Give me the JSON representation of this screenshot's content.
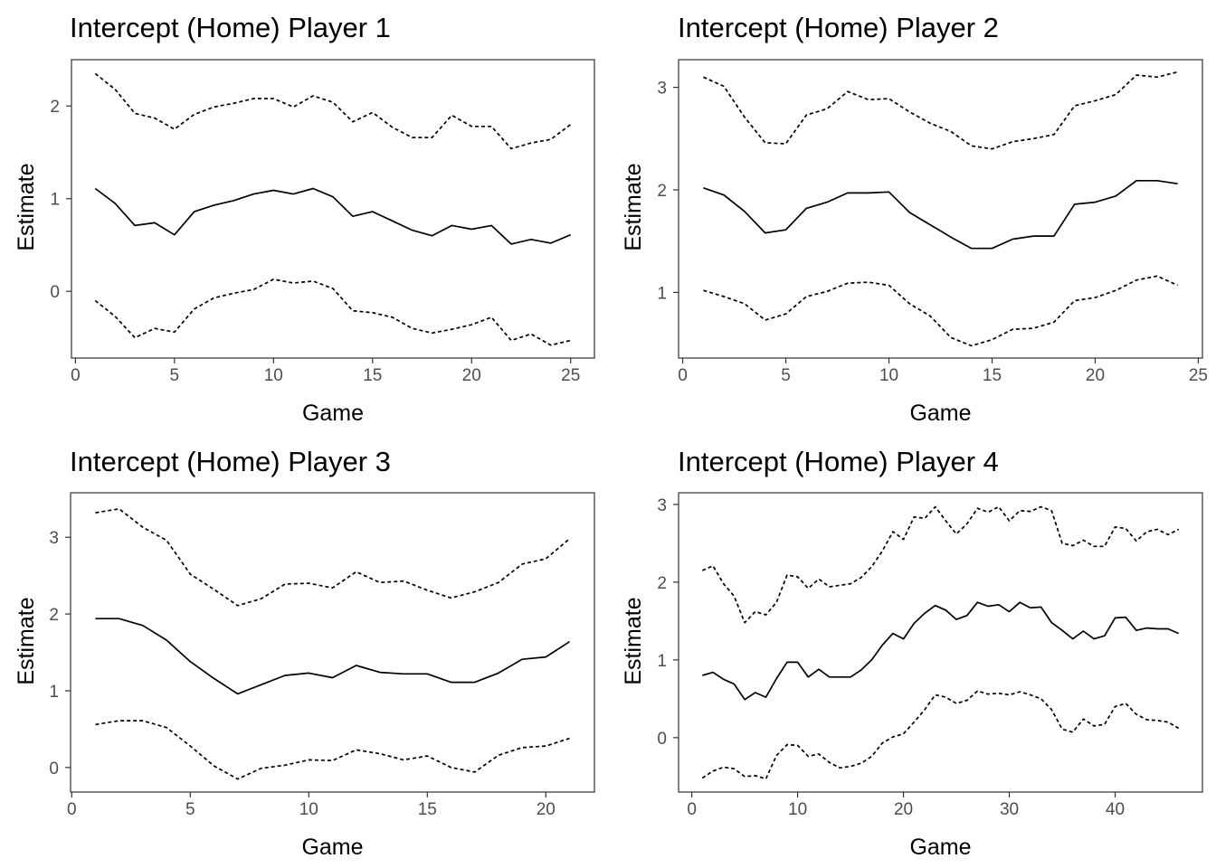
{
  "chart_data": [
    {
      "type": "line",
      "title": "Intercept (Home) Player 1",
      "xlabel": "Game",
      "ylabel": "Estimate",
      "xlim": [
        -0.2,
        26.2
      ],
      "ylim": [
        -0.72,
        2.5
      ],
      "xticks": [
        0,
        5,
        10,
        15,
        20,
        25
      ],
      "yticks": [
        0,
        1,
        2
      ],
      "x": [
        1,
        2,
        3,
        4,
        5,
        6,
        7,
        8,
        9,
        10,
        11,
        12,
        13,
        14,
        15,
        16,
        17,
        18,
        19,
        20,
        21,
        22,
        23,
        24,
        25
      ],
      "series": [
        {
          "style": "solid",
          "values": [
            1.11,
            0.95,
            0.71,
            0.74,
            0.61,
            0.86,
            0.93,
            0.98,
            1.05,
            1.09,
            1.05,
            1.11,
            1.02,
            0.81,
            0.86,
            0.76,
            0.66,
            0.6,
            0.71,
            0.67,
            0.71,
            0.51,
            0.56,
            0.52,
            0.61
          ]
        },
        {
          "style": "dashed",
          "values": [
            2.35,
            2.18,
            1.92,
            1.87,
            1.75,
            1.91,
            1.99,
            2.03,
            2.08,
            2.08,
            1.99,
            2.11,
            2.04,
            1.83,
            1.93,
            1.77,
            1.66,
            1.66,
            1.9,
            1.78,
            1.78,
            1.54,
            1.6,
            1.64,
            1.8
          ]
        },
        {
          "style": "dashed",
          "values": [
            -0.1,
            -0.27,
            -0.5,
            -0.4,
            -0.44,
            -0.19,
            -0.07,
            -0.02,
            0.02,
            0.13,
            0.09,
            0.11,
            0.03,
            -0.21,
            -0.23,
            -0.28,
            -0.4,
            -0.45,
            -0.41,
            -0.36,
            -0.28,
            -0.53,
            -0.46,
            -0.58,
            -0.53
          ]
        }
      ]
    },
    {
      "type": "line",
      "title": "Intercept (Home) Player 2",
      "xlabel": "Game",
      "ylabel": "Estimate",
      "xlim": [
        -0.2,
        25.2
      ],
      "ylim": [
        0.36,
        3.27
      ],
      "xticks": [
        0,
        5,
        10,
        15,
        20,
        25
      ],
      "yticks": [
        1,
        2,
        3
      ],
      "x": [
        1,
        2,
        3,
        4,
        5,
        6,
        7,
        8,
        9,
        10,
        11,
        12,
        13,
        14,
        15,
        16,
        17,
        18,
        19,
        20,
        21,
        22,
        23,
        24
      ],
      "series": [
        {
          "style": "solid",
          "values": [
            2.02,
            1.95,
            1.79,
            1.58,
            1.61,
            1.82,
            1.88,
            1.97,
            1.97,
            1.98,
            1.78,
            1.66,
            1.54,
            1.43,
            1.43,
            1.52,
            1.55,
            1.55,
            1.86,
            1.88,
            1.94,
            2.09,
            2.09,
            2.06
          ]
        },
        {
          "style": "dashed",
          "values": [
            3.1,
            3.01,
            2.71,
            2.46,
            2.45,
            2.73,
            2.79,
            2.96,
            2.88,
            2.89,
            2.76,
            2.65,
            2.57,
            2.43,
            2.4,
            2.47,
            2.5,
            2.54,
            2.82,
            2.87,
            2.93,
            3.12,
            3.1,
            3.15
          ]
        },
        {
          "style": "dashed",
          "values": [
            1.02,
            0.96,
            0.89,
            0.73,
            0.79,
            0.96,
            1.01,
            1.09,
            1.1,
            1.07,
            0.89,
            0.77,
            0.56,
            0.48,
            0.54,
            0.64,
            0.65,
            0.71,
            0.92,
            0.95,
            1.02,
            1.12,
            1.16,
            1.07
          ]
        }
      ]
    },
    {
      "type": "line",
      "title": "Intercept (Home) Player 3",
      "xlabel": "Game",
      "ylabel": "Estimate",
      "xlim": [
        -0.05,
        22.05
      ],
      "ylim": [
        -0.32,
        3.58
      ],
      "xticks": [
        0,
        5,
        10,
        15,
        20
      ],
      "yticks": [
        0,
        1,
        2,
        3
      ],
      "x": [
        1,
        2,
        3,
        4,
        5,
        6,
        7,
        8,
        9,
        10,
        11,
        12,
        13,
        14,
        15,
        16,
        17,
        18,
        19,
        20,
        21
      ],
      "series": [
        {
          "style": "solid",
          "values": [
            1.94,
            1.94,
            1.85,
            1.66,
            1.38,
            1.16,
            0.96,
            1.08,
            1.2,
            1.23,
            1.17,
            1.33,
            1.24,
            1.22,
            1.22,
            1.11,
            1.11,
            1.23,
            1.41,
            1.44,
            1.64
          ]
        },
        {
          "style": "dashed",
          "values": [
            3.32,
            3.37,
            3.13,
            2.96,
            2.52,
            2.32,
            2.11,
            2.2,
            2.39,
            2.4,
            2.34,
            2.55,
            2.41,
            2.43,
            2.31,
            2.21,
            2.29,
            2.41,
            2.65,
            2.72,
            2.98
          ]
        },
        {
          "style": "dashed",
          "values": [
            0.56,
            0.61,
            0.61,
            0.52,
            0.28,
            0.02,
            -0.15,
            -0.01,
            0.03,
            0.1,
            0.09,
            0.23,
            0.18,
            0.1,
            0.15,
            0.0,
            -0.06,
            0.16,
            0.26,
            0.28,
            0.38
          ]
        }
      ]
    },
    {
      "type": "line",
      "title": "Intercept (Home) Player 4",
      "xlabel": "Game",
      "ylabel": "Estimate",
      "xlim": [
        -1.25,
        48.25
      ],
      "ylim": [
        -0.7,
        3.15
      ],
      "xticks": [
        0,
        10,
        20,
        30,
        40
      ],
      "yticks": [
        0,
        1,
        2,
        3
      ],
      "x": [
        1,
        2,
        3,
        4,
        5,
        6,
        7,
        8,
        9,
        10,
        11,
        12,
        13,
        14,
        15,
        16,
        17,
        18,
        19,
        20,
        21,
        22,
        23,
        24,
        25,
        26,
        27,
        28,
        29,
        30,
        31,
        32,
        33,
        34,
        35,
        36,
        37,
        38,
        39,
        40,
        41,
        42,
        43,
        44,
        45,
        46
      ],
      "series": [
        {
          "style": "solid",
          "values": [
            0.8,
            0.84,
            0.75,
            0.69,
            0.49,
            0.58,
            0.52,
            0.76,
            0.97,
            0.97,
            0.78,
            0.88,
            0.78,
            0.78,
            0.78,
            0.87,
            1.0,
            1.19,
            1.34,
            1.27,
            1.47,
            1.6,
            1.7,
            1.64,
            1.52,
            1.57,
            1.74,
            1.69,
            1.71,
            1.62,
            1.74,
            1.67,
            1.68,
            1.48,
            1.38,
            1.27,
            1.37,
            1.27,
            1.31,
            1.54,
            1.55,
            1.38,
            1.41,
            1.4,
            1.4,
            1.34
          ]
        },
        {
          "style": "dashed",
          "values": [
            2.15,
            2.21,
            1.98,
            1.82,
            1.48,
            1.62,
            1.58,
            1.74,
            2.09,
            2.07,
            1.92,
            2.04,
            1.94,
            1.96,
            1.98,
            2.06,
            2.2,
            2.4,
            2.65,
            2.55,
            2.84,
            2.82,
            2.97,
            2.79,
            2.62,
            2.75,
            2.95,
            2.9,
            2.97,
            2.79,
            2.92,
            2.91,
            2.97,
            2.92,
            2.5,
            2.47,
            2.54,
            2.46,
            2.46,
            2.71,
            2.69,
            2.53,
            2.65,
            2.68,
            2.61,
            2.68
          ]
        },
        {
          "style": "dashed",
          "values": [
            -0.52,
            -0.43,
            -0.38,
            -0.4,
            -0.5,
            -0.49,
            -0.53,
            -0.23,
            -0.09,
            -0.1,
            -0.24,
            -0.21,
            -0.32,
            -0.39,
            -0.37,
            -0.33,
            -0.24,
            -0.07,
            0.01,
            0.05,
            0.2,
            0.36,
            0.55,
            0.52,
            0.44,
            0.48,
            0.6,
            0.56,
            0.57,
            0.55,
            0.59,
            0.55,
            0.5,
            0.36,
            0.11,
            0.07,
            0.24,
            0.15,
            0.17,
            0.4,
            0.44,
            0.3,
            0.23,
            0.22,
            0.2,
            0.12
          ]
        }
      ]
    }
  ]
}
